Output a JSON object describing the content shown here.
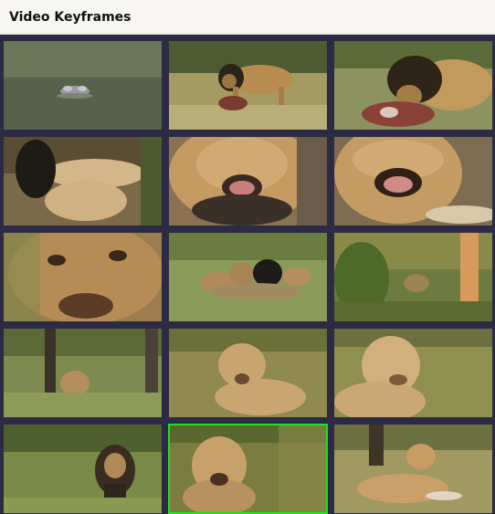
{
  "header": {
    "title": "Video Keyframes"
  },
  "keyframes": [
    {
      "id": 1,
      "selected": false
    },
    {
      "id": 2,
      "selected": false
    },
    {
      "id": 3,
      "selected": false
    },
    {
      "id": 4,
      "selected": false
    },
    {
      "id": 5,
      "selected": false
    },
    {
      "id": 6,
      "selected": false
    },
    {
      "id": 7,
      "selected": false
    },
    {
      "id": 8,
      "selected": false
    },
    {
      "id": 9,
      "selected": false
    },
    {
      "id": 10,
      "selected": false
    },
    {
      "id": 11,
      "selected": false
    },
    {
      "id": 12,
      "selected": false
    },
    {
      "id": 13,
      "selected": false
    },
    {
      "id": 14,
      "selected": true
    },
    {
      "id": 15,
      "selected": false
    }
  ],
  "colors": {
    "background": "#2c2a45",
    "header": "#f7f6f3",
    "selection": "#22dd22"
  }
}
